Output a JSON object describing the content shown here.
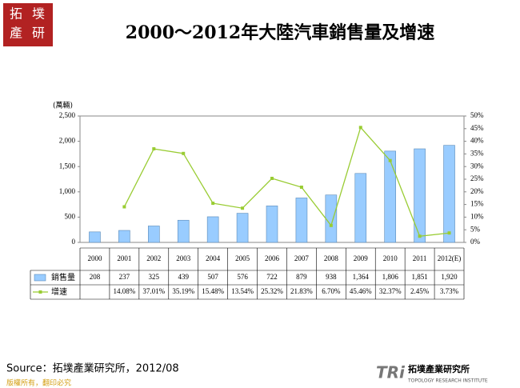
{
  "logo": [
    "拓",
    "墣",
    "產",
    "研"
  ],
  "chart_data": {
    "type": "bar",
    "title": "2000～2012年大陸汽車銷售量及增速",
    "y_label": "(萬輛)",
    "categories": [
      "2000",
      "2001",
      "2002",
      "2003",
      "2004",
      "2005",
      "2006",
      "2007",
      "2008",
      "2009",
      "2010",
      "2011",
      "2012(E)"
    ],
    "series": [
      {
        "name": "銷售量",
        "type": "bar",
        "color": "#99ccff",
        "values": [
          208,
          237,
          325,
          439,
          507,
          576,
          722,
          879,
          938,
          1364,
          1806,
          1851,
          1920
        ],
        "value_labels": [
          "208",
          "237",
          "325",
          "439",
          "507",
          "576",
          "722",
          "879",
          "938",
          "1,364",
          "1,806",
          "1,851",
          "1,920"
        ]
      },
      {
        "name": "增速",
        "type": "line",
        "axis": "y2",
        "color": "#99cc33",
        "values": [
          null,
          14.08,
          37.01,
          35.19,
          15.48,
          13.54,
          25.32,
          21.83,
          6.7,
          45.46,
          32.37,
          2.45,
          3.73
        ],
        "value_labels": [
          null,
          "14.08%",
          "37.01%",
          "35.19%",
          "15.48%",
          "13.54%",
          "25.32%",
          "21.83%",
          "6.70%",
          "45.46%",
          "32.37%",
          "2.45%",
          "3.73%"
        ]
      }
    ],
    "ylim": [
      0,
      2500
    ],
    "yticks": [
      0,
      500,
      {
        "value": 1000,
        "label": "1,000"
      },
      {
        "value": 1500,
        "label": "1,500"
      },
      {
        "value": 2000,
        "label": "2,000"
      },
      {
        "value": 2500,
        "label": "2,500"
      }
    ],
    "y2lim": [
      0,
      50
    ],
    "y2ticks": [
      {
        "value": 0,
        "label": "0%"
      },
      {
        "value": 5,
        "label": "5%"
      },
      {
        "value": 10,
        "label": "10%"
      },
      {
        "value": 15,
        "label": "15%"
      },
      {
        "value": 20,
        "label": "20%"
      },
      {
        "value": 25,
        "label": "25%"
      },
      {
        "value": 30,
        "label": "30%"
      },
      {
        "value": 35,
        "label": "35%"
      },
      {
        "value": 40,
        "label": "40%"
      },
      {
        "value": 45,
        "label": "45%"
      },
      {
        "value": 50,
        "label": "50%"
      }
    ]
  },
  "source": "Source：拓墣產業研究所，2012/08",
  "copyright": "版權所有，翻印必究",
  "brand": {
    "mark": "TRi",
    "name": "拓墣產業研究所",
    "english": "TOPOLOGY RESEARCH INSTITUTE"
  }
}
